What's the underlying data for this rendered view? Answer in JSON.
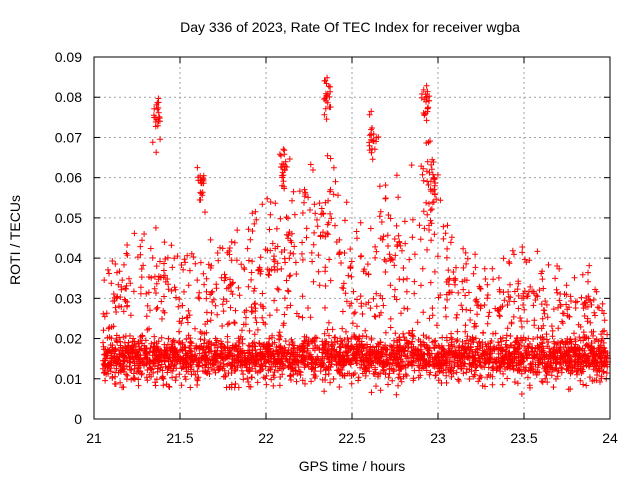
{
  "chart_data": {
    "type": "scatter",
    "title": "Day 336 of 2023, Rate Of TEC Index for receiver wgba",
    "xlabel": "GPS time / hours",
    "ylabel": "ROTI / TECUs",
    "xlim": [
      21,
      24
    ],
    "ylim": [
      0,
      0.09
    ],
    "grid": true,
    "marker": "+",
    "series_color": "#ff0000",
    "x_ticks": [
      21,
      21.5,
      22,
      22.5,
      23,
      23.5,
      24
    ],
    "x_tick_labels": [
      "21",
      "21.5",
      "22",
      "22.5",
      "23",
      "23.5",
      "24"
    ],
    "y_ticks": [
      0,
      0.01,
      0.02,
      0.03,
      0.04,
      0.05,
      0.06,
      0.07,
      0.08,
      0.09
    ],
    "y_tick_labels": [
      "0",
      "0.01",
      "0.02",
      "0.03",
      "0.04",
      "0.05",
      "0.06",
      "0.07",
      "0.08",
      "0.09"
    ],
    "points_estimated_count": 3500,
    "band_profile": {
      "x": [
        21.05,
        21.2,
        21.35,
        21.5,
        21.65,
        21.8,
        22.0,
        22.2,
        22.35,
        22.5,
        22.7,
        22.85,
        22.95,
        23.1,
        23.3,
        23.5,
        23.7,
        23.9,
        24.0
      ],
      "typical_low": [
        0.007,
        0.008,
        0.008,
        0.007,
        0.006,
        0.007,
        0.008,
        0.008,
        0.006,
        0.008,
        0.005,
        0.007,
        0.008,
        0.008,
        0.007,
        0.006,
        0.007,
        0.008,
        0.009
      ],
      "typical_high": [
        0.036,
        0.045,
        0.05,
        0.04,
        0.045,
        0.046,
        0.055,
        0.06,
        0.072,
        0.05,
        0.06,
        0.065,
        0.07,
        0.045,
        0.04,
        0.043,
        0.04,
        0.038,
        0.03
      ]
    },
    "clusters": [
      {
        "x": 21.37,
        "y": 0.075,
        "note": "peak ~0.08"
      },
      {
        "x": 21.62,
        "y": 0.058
      },
      {
        "x": 22.1,
        "y": 0.062
      },
      {
        "x": 22.35,
        "y": 0.08,
        "note": "peak ~0.083"
      },
      {
        "x": 22.62,
        "y": 0.07
      },
      {
        "x": 22.93,
        "y": 0.078,
        "note": "peak ~0.081"
      },
      {
        "x": 22.97,
        "y": 0.058
      }
    ]
  }
}
